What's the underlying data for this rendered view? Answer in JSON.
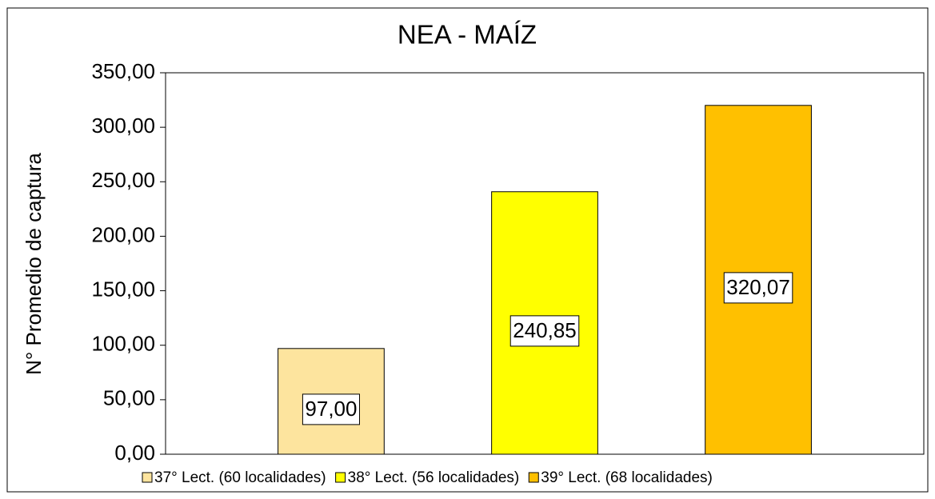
{
  "chart_data": {
    "type": "bar",
    "title": "NEA - MAÍZ",
    "y_label": "N° Promedio de captura",
    "categories": [
      null
    ],
    "series": [
      {
        "name": "37° Lect. (60 localidades)",
        "color": "#fde49e",
        "values": [
          97.0
        ],
        "value_labels": [
          "97,00"
        ]
      },
      {
        "name": "38° Lect. (56 localidades)",
        "color": "#ffff00",
        "values": [
          240.85
        ],
        "value_labels": [
          "240,85"
        ]
      },
      {
        "name": "39° Lect. (68 localidades)",
        "color": "#ffc000",
        "values": [
          320.07
        ],
        "value_labels": [
          "320,07"
        ]
      }
    ],
    "ylim": [
      0,
      350
    ],
    "yticks": [
      {
        "value": 0,
        "label": "0,00"
      },
      {
        "value": 50,
        "label": "50,00"
      },
      {
        "value": 100,
        "label": "100,00"
      },
      {
        "value": 150,
        "label": "150,00"
      },
      {
        "value": 200,
        "label": "200,00"
      },
      {
        "value": 250,
        "label": "250,00"
      },
      {
        "value": 300,
        "label": "300,00"
      },
      {
        "value": 350,
        "label": "350,00"
      }
    ],
    "grid": false,
    "legend": "bottom"
  }
}
